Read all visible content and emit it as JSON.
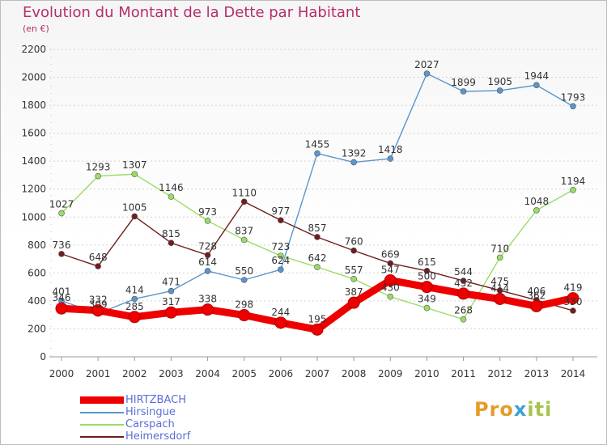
{
  "title": "Evolution du Montant de la Dette par Habitant",
  "unit": "(en €)",
  "logo": "Proxiti",
  "chart_data": {
    "type": "line",
    "title": "Evolution du Montant de la Dette par Habitant",
    "ylabel": "(en €)",
    "xlabel": "",
    "x": [
      "2000",
      "2001",
      "2002",
      "2003",
      "2004",
      "2005",
      "2006",
      "2007",
      "2008",
      "2009",
      "2010",
      "2011",
      "2012",
      "2013",
      "2014"
    ],
    "ylim": [
      0,
      2200
    ],
    "yticks": [
      0,
      200,
      400,
      600,
      800,
      1000,
      1200,
      1400,
      1600,
      1800,
      2000,
      2200
    ],
    "grid": "horizontal",
    "legend_position": "bottom-left",
    "series": [
      {
        "name": "HIRTZBACH",
        "color": "#ee0000",
        "values": [
          346,
          332,
          285,
          317,
          338,
          298,
          244,
          195,
          387,
          547,
          500,
          452,
          414,
          362,
          419
        ]
      },
      {
        "name": "Hirsingue",
        "color": "#5a96cc",
        "values": [
          401,
          309,
          414,
          471,
          614,
          550,
          624,
          1455,
          1392,
          1418,
          2027,
          1899,
          1905,
          1944,
          1793
        ]
      },
      {
        "name": "Carspach",
        "color": "#99dd66",
        "values": [
          1027,
          1293,
          1307,
          1146,
          973,
          837,
          723,
          642,
          557,
          430,
          349,
          268,
          710,
          1048,
          1194
        ]
      },
      {
        "name": "Heimersdorf",
        "color": "#6e1e1e",
        "values": [
          736,
          648,
          1005,
          815,
          728,
          1110,
          977,
          857,
          760,
          669,
          615,
          544,
          475,
          406,
          330
        ]
      }
    ]
  }
}
